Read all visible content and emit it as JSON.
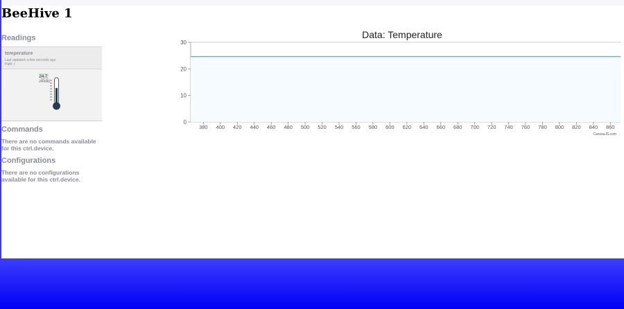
{
  "page": {
    "title": "BeeHive 1"
  },
  "readings": {
    "heading": "Readings",
    "items": [
      {
        "name": "temperature",
        "updated": "Last updated: a few seconds ago",
        "path": "Path: /",
        "thermometer": {
          "max_label": "25.5",
          "value_label": "24.7",
          "sub_label": "24.562",
          "level": 0.62
        }
      }
    ]
  },
  "commands": {
    "heading": "Commands",
    "empty": "There are no commands available for this ctrl.device."
  },
  "configurations": {
    "heading": "Configurations",
    "empty": "There are no configurations available for this ctrl.device."
  },
  "chart_data": {
    "type": "line",
    "title": "Data: Temperature",
    "credit": "CanvasJS.com",
    "xlim": [
      365,
      872
    ],
    "ylim": [
      0,
      30
    ],
    "x_ticks": [
      380,
      400,
      420,
      440,
      460,
      480,
      500,
      520,
      540,
      560,
      580,
      600,
      620,
      640,
      660,
      680,
      700,
      720,
      740,
      760,
      780,
      800,
      820,
      840,
      860
    ],
    "y_ticks": [
      0,
      10,
      20,
      30
    ],
    "grid": true,
    "series": [
      {
        "x": [
          365,
          872
        ],
        "y": [
          24.6,
          24.6
        ],
        "color": "#4aa3c8"
      }
    ]
  }
}
